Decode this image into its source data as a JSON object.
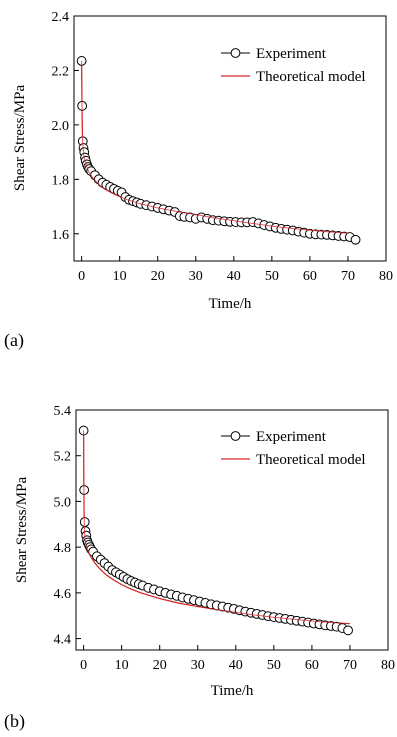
{
  "panels": [
    {
      "label": "(a)",
      "chart_data": {
        "type": "line",
        "title": "",
        "xlabel": "Time/h",
        "ylabel": "Shear Stress/MPa",
        "xlim": [
          -2,
          80
        ],
        "ylim": [
          1.5,
          2.4
        ],
        "xticks": [
          0,
          10,
          20,
          30,
          40,
          50,
          60,
          70,
          80
        ],
        "yticks": [
          1.6,
          1.8,
          2.0,
          2.2,
          2.4
        ],
        "grid": false,
        "legend": "top-right",
        "series": [
          {
            "name": "Experiment",
            "style": "scatter",
            "marker": "open-circle",
            "color": "#000000",
            "points": [
              [
                0,
                2.235
              ],
              [
                0.15,
                2.07
              ],
              [
                0.3,
                1.94
              ],
              [
                0.5,
                1.915
              ],
              [
                0.7,
                1.9
              ],
              [
                0.9,
                1.88
              ],
              [
                1.1,
                1.868
              ],
              [
                1.4,
                1.855
              ],
              [
                1.7,
                1.845
              ],
              [
                2.0,
                1.838
              ],
              [
                2.5,
                1.83
              ],
              [
                3.5,
                1.815
              ],
              [
                4.5,
                1.8
              ],
              [
                5.5,
                1.788
              ],
              [
                6.5,
                1.78
              ],
              [
                7.5,
                1.772
              ],
              [
                8.5,
                1.765
              ],
              [
                9.5,
                1.758
              ],
              [
                10.5,
                1.752
              ],
              [
                11.5,
                1.735
              ],
              [
                12.5,
                1.725
              ],
              [
                13.5,
                1.72
              ],
              [
                14.5,
                1.715
              ],
              [
                15.5,
                1.71
              ],
              [
                17,
                1.705
              ],
              [
                18.5,
                1.7
              ],
              [
                20,
                1.695
              ],
              [
                21.5,
                1.69
              ],
              [
                23,
                1.685
              ],
              [
                24.5,
                1.68
              ],
              [
                25.8,
                1.665
              ],
              [
                27,
                1.662
              ],
              [
                28.5,
                1.66
              ],
              [
                30,
                1.655
              ],
              [
                31.5,
                1.66
              ],
              [
                33,
                1.655
              ],
              [
                34.5,
                1.65
              ],
              [
                36,
                1.648
              ],
              [
                37.5,
                1.646
              ],
              [
                39,
                1.644
              ],
              [
                40.5,
                1.643
              ],
              [
                42,
                1.642
              ],
              [
                43.5,
                1.642
              ],
              [
                45,
                1.643
              ],
              [
                46.5,
                1.638
              ],
              [
                48,
                1.632
              ],
              [
                49.5,
                1.627
              ],
              [
                51,
                1.622
              ],
              [
                52.5,
                1.618
              ],
              [
                54,
                1.615
              ],
              [
                55.5,
                1.612
              ],
              [
                57,
                1.608
              ],
              [
                58.5,
                1.604
              ],
              [
                60,
                1.6
              ],
              [
                61.5,
                1.598
              ],
              [
                63,
                1.597
              ],
              [
                64.5,
                1.596
              ],
              [
                66,
                1.594
              ],
              [
                67.5,
                1.592
              ],
              [
                69,
                1.59
              ],
              [
                70.5,
                1.588
              ],
              [
                72,
                1.578
              ]
            ]
          },
          {
            "name": "Theoretical model",
            "style": "line",
            "color": "#d62728",
            "points": [
              [
                0,
                2.235
              ],
              [
                0.05,
                2.15
              ],
              [
                0.12,
                2.05
              ],
              [
                0.2,
                1.97
              ],
              [
                0.35,
                1.92
              ],
              [
                0.6,
                1.885
              ],
              [
                1,
                1.86
              ],
              [
                1.5,
                1.84
              ],
              [
                2,
                1.825
              ],
              [
                3,
                1.805
              ],
              [
                4,
                1.79
              ],
              [
                5,
                1.775
              ],
              [
                6,
                1.765
              ],
              [
                8,
                1.75
              ],
              [
                10,
                1.737
              ],
              [
                12,
                1.725
              ],
              [
                15,
                1.712
              ],
              [
                20,
                1.695
              ],
              [
                25,
                1.682
              ],
              [
                30,
                1.67
              ],
              [
                35,
                1.658
              ],
              [
                40,
                1.648
              ],
              [
                45,
                1.638
              ],
              [
                50,
                1.628
              ],
              [
                55,
                1.62
              ],
              [
                60,
                1.613
              ],
              [
                65,
                1.607
              ],
              [
                70,
                1.602
              ]
            ]
          }
        ]
      }
    },
    {
      "label": "(b)",
      "chart_data": {
        "type": "line",
        "title": "",
        "xlabel": "Time/h",
        "ylabel": "Shear Stress/MPa",
        "xlim": [
          -2,
          80
        ],
        "ylim": [
          4.35,
          5.4
        ],
        "xticks": [
          0,
          10,
          20,
          30,
          40,
          50,
          60,
          70,
          80
        ],
        "yticks": [
          4.4,
          4.6,
          4.8,
          5.0,
          5.2,
          5.4
        ],
        "grid": false,
        "legend": "top-right",
        "series": [
          {
            "name": "Experiment",
            "style": "scatter",
            "marker": "open-circle",
            "color": "#000000",
            "points": [
              [
                0,
                5.31
              ],
              [
                0.15,
                5.05
              ],
              [
                0.3,
                4.91
              ],
              [
                0.5,
                4.87
              ],
              [
                0.7,
                4.85
              ],
              [
                0.9,
                4.83
              ],
              [
                1.1,
                4.82
              ],
              [
                1.4,
                4.81
              ],
              [
                1.7,
                4.8
              ],
              [
                2.0,
                4.79
              ],
              [
                2.5,
                4.78
              ],
              [
                3.5,
                4.76
              ],
              [
                4.5,
                4.745
              ],
              [
                5.5,
                4.73
              ],
              [
                6.5,
                4.715
              ],
              [
                7.5,
                4.7
              ],
              [
                8.5,
                4.69
              ],
              [
                9.5,
                4.68
              ],
              [
                10.5,
                4.67
              ],
              [
                11.5,
                4.66
              ],
              [
                12.5,
                4.652
              ],
              [
                13.5,
                4.645
              ],
              [
                14.5,
                4.638
              ],
              [
                15.5,
                4.632
              ],
              [
                17,
                4.622
              ],
              [
                18.5,
                4.615
              ],
              [
                20,
                4.607
              ],
              [
                21.5,
                4.6
              ],
              [
                23,
                4.593
              ],
              [
                24.5,
                4.587
              ],
              [
                26,
                4.58
              ],
              [
                27.5,
                4.574
              ],
              [
                29,
                4.568
              ],
              [
                30.5,
                4.562
              ],
              [
                32,
                4.556
              ],
              [
                33.5,
                4.55
              ],
              [
                35,
                4.545
              ],
              [
                36.5,
                4.54
              ],
              [
                38,
                4.535
              ],
              [
                39.5,
                4.53
              ],
              [
                41,
                4.524
              ],
              [
                42.5,
                4.518
              ],
              [
                44,
                4.513
              ],
              [
                45.5,
                4.508
              ],
              [
                47,
                4.503
              ],
              [
                48.5,
                4.498
              ],
              [
                50,
                4.494
              ],
              [
                51.5,
                4.49
              ],
              [
                53,
                4.486
              ],
              [
                54.5,
                4.482
              ],
              [
                56,
                4.478
              ],
              [
                57.5,
                4.474
              ],
              [
                59,
                4.47
              ],
              [
                60.5,
                4.466
              ],
              [
                62,
                4.462
              ],
              [
                63.5,
                4.458
              ],
              [
                65,
                4.455
              ],
              [
                66.5,
                4.452
              ],
              [
                68,
                4.446
              ],
              [
                69.5,
                4.436
              ]
            ]
          },
          {
            "name": "Theoretical model",
            "style": "line",
            "color": "#d62728",
            "points": [
              [
                0,
                5.31
              ],
              [
                0.05,
                5.1
              ],
              [
                0.12,
                4.96
              ],
              [
                0.2,
                4.88
              ],
              [
                0.35,
                4.84
              ],
              [
                0.6,
                4.81
              ],
              [
                1,
                4.79
              ],
              [
                1.5,
                4.77
              ],
              [
                2,
                4.755
              ],
              [
                3,
                4.73
              ],
              [
                4,
                4.71
              ],
              [
                5,
                4.693
              ],
              [
                6,
                4.678
              ],
              [
                8,
                4.655
              ],
              [
                10,
                4.636
              ],
              [
                12,
                4.62
              ],
              [
                15,
                4.6
              ],
              [
                20,
                4.575
              ],
              [
                25,
                4.555
              ],
              [
                30,
                4.54
              ],
              [
                35,
                4.527
              ],
              [
                40,
                4.515
              ],
              [
                45,
                4.503
              ],
              [
                50,
                4.493
              ],
              [
                55,
                4.485
              ],
              [
                60,
                4.477
              ],
              [
                65,
                4.47
              ],
              [
                70,
                4.465
              ]
            ]
          }
        ]
      }
    }
  ]
}
